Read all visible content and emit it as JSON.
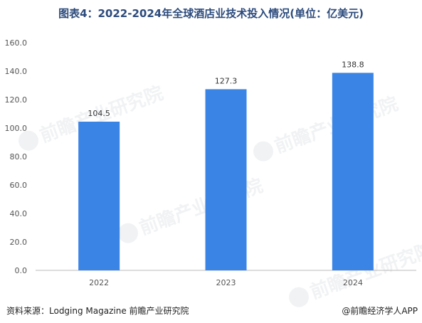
{
  "title": "图表4：2022-2024年全球酒店业技术投入情况(单位：亿美元)",
  "footer": {
    "source": "资料来源：Lodging Magazine 前瞻产业研究院",
    "brand": "@前瞻经济学人APP"
  },
  "watermark": "前瞻产业研究院",
  "colors": {
    "bar": "#3a84e6",
    "grid": "#e0e0e0",
    "axis": "#bbbbbb"
  },
  "chart_data": {
    "type": "bar",
    "title": "图表4：2022-2024年全球酒店业技术投入情况(单位：亿美元)",
    "categories": [
      "2022",
      "2023",
      "2024"
    ],
    "values": [
      104.5,
      127.3,
      138.8
    ],
    "value_labels": [
      "104.5",
      "127.3",
      "138.8"
    ],
    "y_ticks": [
      "0.0",
      "20.0",
      "40.0",
      "60.0",
      "80.0",
      "100.0",
      "120.0",
      "140.0",
      "160.0"
    ],
    "ylim": [
      0,
      160
    ],
    "grid": false,
    "legend": "none"
  }
}
